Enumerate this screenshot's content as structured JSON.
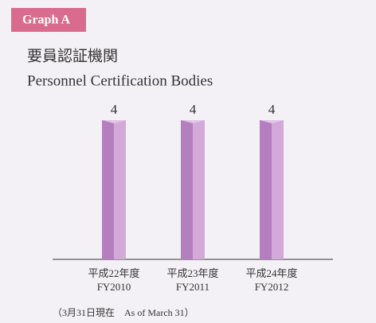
{
  "chart_data": {
    "type": "bar",
    "badge": "Graph A",
    "title": "要員認証機関",
    "subtitle": "Personnel Certification Bodies",
    "categories": [
      "平成22年度",
      "平成23年度",
      "平成24年度"
    ],
    "categories_en": [
      "FY2010",
      "FY2011",
      "FY2012"
    ],
    "values": [
      4,
      4,
      4
    ],
    "color": "#b57fbf",
    "note": "（3月31日現在　As of March 31）"
  }
}
